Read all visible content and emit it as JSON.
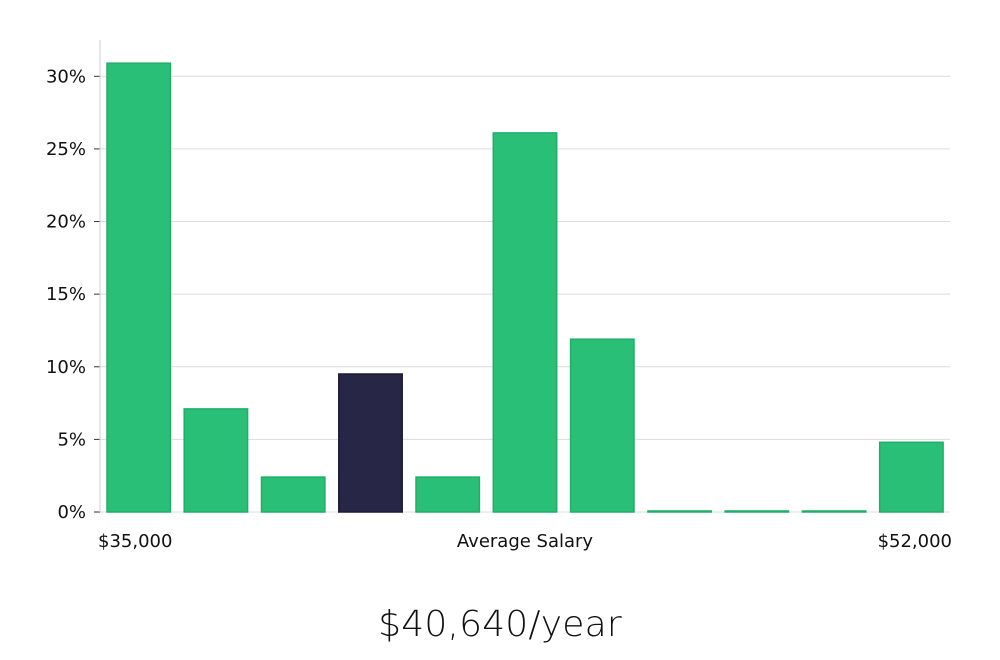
{
  "chart_data": {
    "type": "bar",
    "categories": [
      "1",
      "2",
      "3",
      "4",
      "5",
      "6",
      "7",
      "8",
      "9",
      "10",
      "11"
    ],
    "values": [
      30.9,
      7.1,
      2.4,
      9.5,
      2.4,
      26.1,
      11.9,
      0.0,
      0.0,
      0.0,
      4.8
    ],
    "highlight_index": 3,
    "ylim": [
      0,
      32.5
    ],
    "yticks": [
      0,
      5,
      10,
      15,
      20,
      25,
      30
    ],
    "ytick_labels": [
      "0%",
      "5%",
      "10%",
      "15%",
      "20%",
      "25%",
      "30%"
    ],
    "x_min_label": "$35,000",
    "x_max_label": "$52,000",
    "xlabel": "Average Salary",
    "grid": true,
    "colors": {
      "bar": "#2abf76",
      "bar_edge": "#1fae68",
      "highlight": "#282646",
      "highlight_edge": "#1a1833",
      "grid": "#dcdcdc",
      "axis": "#cfcfcf"
    }
  },
  "summary": {
    "average_salary": "$40,640/year"
  }
}
